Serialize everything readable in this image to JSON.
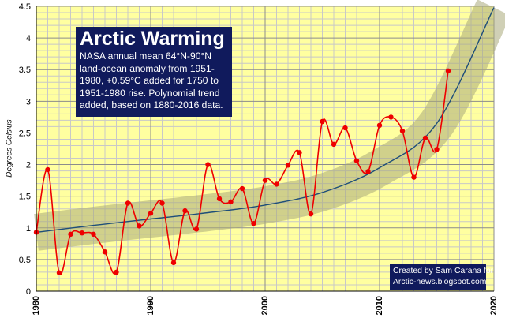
{
  "chart_data": {
    "type": "line",
    "title": "Arctic Warming",
    "subtitle": "NASA annual mean 64°N-90°N land-ocean anomaly from 1951-1980, +0.59°C added for 1750 to 1951-1980 rise. Polynomial trend added, based on 1880-2016 data.",
    "xlabel": "",
    "ylabel": "Degrees Celsius",
    "xlim": [
      1980,
      2020
    ],
    "ylim": [
      0,
      4.5
    ],
    "x_ticks": [
      "1980",
      "1990",
      "2000",
      "2010",
      "2020"
    ],
    "y_ticks": [
      "0",
      "0.5",
      "1",
      "1.5",
      "2",
      "2.5",
      "3",
      "3.5",
      "4",
      "4.5"
    ],
    "grid": true,
    "series": [
      {
        "type": "smoothed-line-with-markers",
        "color": "#ee0000",
        "x": [
          1980,
          1981,
          1982,
          1983,
          1984,
          1985,
          1986,
          1987,
          1988,
          1989,
          1990,
          1991,
          1992,
          1993,
          1994,
          1995,
          1996,
          1997,
          1998,
          1999,
          2000,
          2001,
          2002,
          2003,
          2004,
          2005,
          2006,
          2007,
          2008,
          2009,
          2010,
          2011,
          2012,
          2013,
          2014,
          2015,
          2016
        ],
        "y": [
          0.93,
          1.92,
          0.29,
          0.9,
          0.92,
          0.9,
          0.62,
          0.3,
          1.39,
          1.03,
          1.23,
          1.39,
          0.45,
          1.27,
          0.98,
          2.0,
          1.46,
          1.41,
          1.62,
          1.07,
          1.75,
          1.69,
          1.99,
          2.19,
          1.22,
          2.68,
          2.32,
          2.58,
          2.06,
          1.89,
          2.62,
          2.75,
          2.53,
          1.8,
          2.42,
          2.24,
          3.48
        ]
      },
      {
        "type": "trend",
        "color": "#1e4e79",
        "band_color": "#a9a97a",
        "x": [
          1980,
          1985,
          1990,
          1995,
          2000,
          2005,
          2010,
          2015,
          2020
        ],
        "y": [
          0.93,
          1.04,
          1.14,
          1.24,
          1.36,
          1.56,
          1.95,
          2.65,
          4.48
        ]
      }
    ]
  },
  "annotations": {
    "title": "Arctic Warming",
    "subtitle": "NASA annual mean 64°N-90°N land-ocean anomaly from 1951-1980, +0.59°C added for 1750 to 1951-1980 rise. Polynomial trend added, based on 1880-2016 data.",
    "credit_line1": "Created by Sam Carana for",
    "credit_line2": "Arctic-news.blogspot.com"
  },
  "colors": {
    "plot_background": "#ffffa0",
    "grid": "#c8c8c8",
    "data_line": "#ee0000",
    "trend_line": "#1e4e79",
    "trend_band": "#a9a97a",
    "box_background": "#101a5c",
    "box_text": "#ffffff"
  }
}
